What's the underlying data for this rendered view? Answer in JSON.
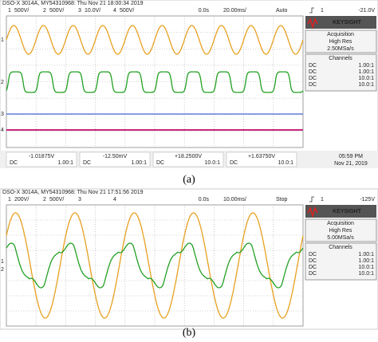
{
  "panels": [
    {
      "label": "(a)",
      "header": "DSO-X 3014A, MY54310968: Thu Nov 21 18:00:34 2019",
      "channels": [
        {
          "num": "1",
          "scale": "500V/",
          "color": "#e8a020"
        },
        {
          "num": "2",
          "scale": "500V/",
          "color": "#22a022"
        },
        {
          "num": "3",
          "scale": "10.0V/",
          "color": "#4a6ad8"
        },
        {
          "num": "4",
          "scale": "500V/",
          "color": "#c8287a"
        }
      ],
      "time_offset": "0.0s",
      "time_scale": "20.00ms/",
      "mode": "Auto",
      "trigger_source": "1",
      "trigger_level": "-21.0V",
      "brand": "KEYSIGHT",
      "acquisition_title": "Acquisition",
      "acquisition_mode": "High Res",
      "sample_rate": "2.50MSa/s",
      "channels_title": "Channels",
      "channel_rows": [
        [
          "DC",
          "1.00:1"
        ],
        [
          "DC",
          "1.00:1"
        ],
        [
          "DC",
          "10.0:1"
        ],
        [
          "DC",
          "10.0:1"
        ]
      ],
      "footer": [
        {
          "value": "-1.01875V",
          "coupling": "DC",
          "probe": "1.00:1"
        },
        {
          "value": "-12.50mV",
          "coupling": "DC",
          "probe": "1.00:1"
        },
        {
          "value": "+18.2500V",
          "coupling": "DC",
          "probe": "10.0:1"
        },
        {
          "value": "+1.63750V",
          "coupling": "DC",
          "probe": "10.0:1"
        }
      ],
      "time": "05:59 PM",
      "date": "Nov 21, 2019"
    },
    {
      "label": "(b)",
      "header": "DSO-X 3014A, MY54310968: Thu Nov 21 17:51:56 2019",
      "channels": [
        {
          "num": "1",
          "scale": "200V/",
          "color": "#e8a020"
        },
        {
          "num": "2",
          "scale": "500V/",
          "color": "#22a022"
        },
        {
          "num": "3",
          "scale": "",
          "color": "#4a6ad8"
        },
        {
          "num": "4",
          "scale": "",
          "color": "#c8287a"
        }
      ],
      "time_offset": "0.0s",
      "time_scale": "10.00ms/",
      "mode": "Stop",
      "trigger_source": "1",
      "trigger_level": "-125V",
      "brand": "KEYSIGHT",
      "acquisition_title": "Acquisition",
      "acquisition_mode": "High Res",
      "sample_rate": "5.00MSa/s",
      "channels_title": "Channels",
      "channel_rows": [
        [
          "DC",
          "1.00:1"
        ],
        [
          "DC",
          "1.00:1"
        ],
        [
          "DC",
          "10.0:1"
        ],
        [
          "DC",
          "10.0:1"
        ]
      ]
    }
  ]
}
